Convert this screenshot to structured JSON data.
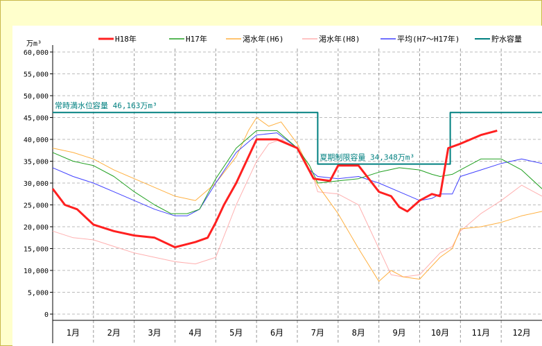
{
  "chart_data": {
    "type": "line",
    "y_unit": "万m³",
    "ylim": [
      0,
      60000
    ],
    "yticks": [
      "0",
      "5,000",
      "10,000",
      "15,000",
      "20,000",
      "25,000",
      "30,000",
      "35,000",
      "40,000",
      "45,000",
      "50,000",
      "55,000",
      "60,000"
    ],
    "categories": [
      "1月",
      "2月",
      "3月",
      "4月",
      "5月",
      "6月",
      "7月",
      "8月",
      "9月",
      "10月",
      "11月",
      "12月"
    ],
    "grid": true,
    "legend_position": "top",
    "series": [
      {
        "name": "H18年",
        "color": "#ff2020",
        "width": 3,
        "x": [
          0,
          0.3,
          0.6,
          1.0,
          1.5,
          2.0,
          2.5,
          3.0,
          3.5,
          3.8,
          4.0,
          4.2,
          4.5,
          5.0,
          5.5,
          6.0,
          6.4,
          6.8,
          7.0,
          7.5,
          8.0,
          8.3,
          8.5,
          8.7,
          9.0,
          9.3,
          9.5,
          9.7,
          10.0,
          10.5,
          10.9
        ],
        "y": [
          28700,
          25000,
          24000,
          20500,
          19000,
          18000,
          17500,
          15300,
          16500,
          17500,
          21000,
          25000,
          30000,
          40000,
          40000,
          38000,
          31000,
          30500,
          34000,
          34000,
          28000,
          27000,
          24500,
          23500,
          26000,
          27500,
          27000,
          38000,
          39000,
          41000,
          42000
        ]
      },
      {
        "name": "H17年",
        "color": "#20a020",
        "width": 1,
        "x": [
          0,
          0.5,
          1.0,
          1.5,
          2.0,
          2.5,
          2.9,
          3.3,
          3.6,
          4.0,
          4.5,
          5.0,
          5.5,
          6.0,
          6.3,
          6.5,
          7.0,
          7.5,
          8.0,
          8.5,
          9.0,
          9.3,
          9.5,
          9.8,
          10.0,
          10.5,
          11.0,
          11.5,
          12.0
        ],
        "y": [
          37000,
          35000,
          34000,
          31500,
          28000,
          25000,
          23000,
          23000,
          24000,
          31000,
          38000,
          42000,
          42000,
          38000,
          34000,
          30000,
          30500,
          31000,
          32500,
          33500,
          33000,
          32000,
          31500,
          32000,
          33000,
          35500,
          35500,
          33000,
          28700
        ]
      },
      {
        "name": "渇水年(H6)",
        "color": "#ffb040",
        "width": 1,
        "x": [
          0,
          0.5,
          1.0,
          1.5,
          2.0,
          2.5,
          3.0,
          3.5,
          4.0,
          4.5,
          4.8,
          5.0,
          5.3,
          5.6,
          6.0,
          6.3,
          6.5,
          7.0,
          7.5,
          8.0,
          8.3,
          8.6,
          9.0,
          9.3,
          9.5,
          9.8,
          10.0,
          10.5,
          11.0,
          11.5,
          12.0
        ],
        "y": [
          38000,
          37000,
          35500,
          33000,
          31000,
          29000,
          27000,
          26000,
          30000,
          36000,
          42000,
          45000,
          43000,
          44000,
          39000,
          33000,
          29500,
          23000,
          15000,
          7500,
          10000,
          8500,
          8000,
          11000,
          13000,
          15000,
          19500,
          20000,
          21000,
          22500,
          23500
        ]
      },
      {
        "name": "渇水年(H8)",
        "color": "#ffb0b0",
        "width": 1,
        "x": [
          0,
          0.5,
          1.0,
          1.5,
          2.0,
          2.5,
          3.0,
          3.5,
          4.0,
          4.5,
          5.0,
          5.3,
          5.6,
          6.0,
          6.3,
          6.5,
          7.0,
          7.5,
          8.0,
          8.3,
          8.6,
          9.0,
          9.3,
          9.5,
          9.8,
          10.0,
          10.5,
          11.0,
          11.5,
          12.0
        ],
        "y": [
          19000,
          17500,
          17000,
          15500,
          14000,
          13000,
          12000,
          11500,
          13000,
          25000,
          35000,
          39000,
          40000,
          38000,
          34000,
          28000,
          27500,
          25000,
          15000,
          9000,
          8500,
          9000,
          12000,
          14000,
          15500,
          19000,
          23000,
          26000,
          29500,
          27000
        ]
      },
      {
        "name": "平均(H7～H17年)",
        "color": "#4040ff",
        "width": 1,
        "x": [
          0,
          0.5,
          1.0,
          1.5,
          2.0,
          2.5,
          3.0,
          3.3,
          3.6,
          4.0,
          4.5,
          5.0,
          5.5,
          6.0,
          6.3,
          6.5,
          7.0,
          7.5,
          8.0,
          8.5,
          9.0,
          9.3,
          9.5,
          9.8,
          10.0,
          10.5,
          11.0,
          11.5,
          12.0
        ],
        "y": [
          33500,
          31500,
          30000,
          28000,
          26000,
          24000,
          22500,
          22500,
          24000,
          30000,
          37000,
          41000,
          41500,
          38000,
          33000,
          31500,
          31000,
          31500,
          30000,
          28000,
          26000,
          26500,
          27500,
          27500,
          31500,
          33000,
          34500,
          35500,
          34500
        ]
      },
      {
        "name": "貯水容量",
        "color": "#008080",
        "width": 2,
        "step": true,
        "x": [
          0,
          6.5,
          6.5,
          9.75,
          9.75,
          12.0
        ],
        "y": [
          46163,
          46163,
          34348,
          34348,
          46163,
          46163
        ]
      }
    ],
    "annotations": [
      {
        "text": "常時満水位容量 46,163万m³",
        "x": 0,
        "y": 46163
      },
      {
        "text": "夏期制限容量 34,348万m³",
        "x": 6.5,
        "y": 34348
      }
    ]
  }
}
